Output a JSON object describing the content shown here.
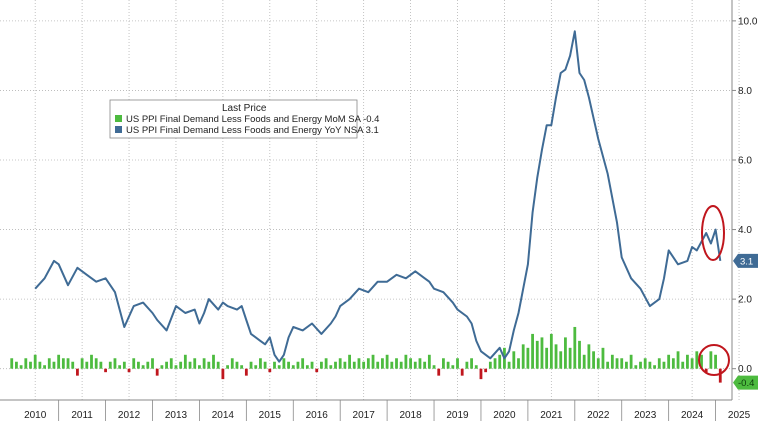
{
  "chart_data": {
    "type": "bar",
    "title": "",
    "legend": {
      "title": "Last Price",
      "placement": "top-left",
      "entries": [
        {
          "text": "US PPI Final Demand Less Foods and Energy MoM SA  -0.4",
          "color": "#4dbb3f"
        },
        {
          "text": "US PPI Final Demand Less Foods and Energy YoY NSA 3.1",
          "color": "#3f6b95"
        }
      ]
    },
    "x_ticks": [
      "2010",
      "2011",
      "2012",
      "2013",
      "2014",
      "2015",
      "2016",
      "2017",
      "2018",
      "2019",
      "2020",
      "2021",
      "2022",
      "2023",
      "2024",
      "2025"
    ],
    "y_ticks": [
      "0.0",
      "2.0",
      "4.0",
      "6.0",
      "8.0",
      "10.0"
    ],
    "ylim": [
      -0.9,
      10.6
    ],
    "y_axis_position": "right",
    "grid": true,
    "last_labels": {
      "yoy": "3.1",
      "mom": "-0.4"
    },
    "colors": {
      "yoy_line": "#3f6b95",
      "mom_positive": "#4dbb3f",
      "mom_negative": "#c0161d",
      "callout": "#c0161d"
    },
    "series": [
      {
        "name": "US PPI Final Demand Less Foods and Energy YoY NSA",
        "type": "line",
        "x": [
          2010.5,
          2010.7,
          2010.9,
          2011.0,
          2011.2,
          2011.4,
          2011.6,
          2011.8,
          2012.0,
          2012.2,
          2012.4,
          2012.6,
          2012.8,
          2013.0,
          2013.1,
          2013.3,
          2013.5,
          2013.7,
          2013.9,
          2014.0,
          2014.1,
          2014.2,
          2014.4,
          2014.5,
          2014.6,
          2014.8,
          2014.9,
          2015.0,
          2015.1,
          2015.3,
          2015.4,
          2015.5,
          2015.6,
          2015.7,
          2015.8,
          2015.9,
          2016.0,
          2016.2,
          2016.4,
          2016.6,
          2016.8,
          2016.9,
          2017.0,
          2017.2,
          2017.4,
          2017.6,
          2017.8,
          2018.0,
          2018.2,
          2018.4,
          2018.6,
          2018.8,
          2018.9,
          2019.0,
          2019.2,
          2019.4,
          2019.5,
          2019.7,
          2019.8,
          2019.9,
          2020.0,
          2020.2,
          2020.4,
          2020.5,
          2020.6,
          2020.7,
          2020.8,
          2020.9,
          2021.0,
          2021.1,
          2021.2,
          2021.3,
          2021.4,
          2021.5,
          2021.6,
          2021.7,
          2021.8,
          2021.9,
          2022.0,
          2022.1,
          2022.2,
          2022.3,
          2022.4,
          2022.5,
          2022.7,
          2022.9,
          2023.0,
          2023.2,
          2023.4,
          2023.6,
          2023.8,
          2023.9,
          2024.0,
          2024.2,
          2024.4,
          2024.5,
          2024.6,
          2024.8,
          2024.9,
          2025.0,
          2025.1
        ],
        "y": [
          2.3,
          2.6,
          3.1,
          3.0,
          2.4,
          2.9,
          2.7,
          2.5,
          2.6,
          2.2,
          1.2,
          1.8,
          1.9,
          1.6,
          1.4,
          1.1,
          1.8,
          1.6,
          1.7,
          1.3,
          1.6,
          2.0,
          1.7,
          1.9,
          1.8,
          1.7,
          1.8,
          1.4,
          1.0,
          0.8,
          0.7,
          0.9,
          0.4,
          0.2,
          0.4,
          0.9,
          1.2,
          1.1,
          1.3,
          1.0,
          1.3,
          1.5,
          1.8,
          2.0,
          2.3,
          2.2,
          2.5,
          2.5,
          2.7,
          2.6,
          2.8,
          2.6,
          2.5,
          2.3,
          2.2,
          1.9,
          1.7,
          1.5,
          1.3,
          0.8,
          0.5,
          0.3,
          0.6,
          0.3,
          0.5,
          1.1,
          1.6,
          2.3,
          3.0,
          4.5,
          5.5,
          6.3,
          7.0,
          7.0,
          7.8,
          8.5,
          8.6,
          9.0,
          9.7,
          8.5,
          8.3,
          7.8,
          7.2,
          6.6,
          5.6,
          4.2,
          3.2,
          2.6,
          2.3,
          1.8,
          2.0,
          2.6,
          3.4,
          3.0,
          3.1,
          3.5,
          3.4,
          3.9,
          3.6,
          4.0,
          3.1
        ]
      },
      {
        "name": "US PPI Final Demand Less Foods and Energy MoM SA",
        "type": "bar",
        "x": [
          2010.0,
          2010.1,
          2010.2,
          2010.3,
          2010.4,
          2010.5,
          2010.6,
          2010.7,
          2010.8,
          2010.9,
          2011.0,
          2011.1,
          2011.2,
          2011.3,
          2011.4,
          2011.5,
          2011.6,
          2011.7,
          2011.8,
          2011.9,
          2012.0,
          2012.1,
          2012.2,
          2012.3,
          2012.4,
          2012.5,
          2012.6,
          2012.7,
          2012.8,
          2012.9,
          2013.0,
          2013.1,
          2013.2,
          2013.3,
          2013.4,
          2013.5,
          2013.6,
          2013.7,
          2013.8,
          2013.9,
          2014.0,
          2014.1,
          2014.2,
          2014.3,
          2014.4,
          2014.5,
          2014.6,
          2014.7,
          2014.8,
          2014.9,
          2015.0,
          2015.1,
          2015.2,
          2015.3,
          2015.4,
          2015.5,
          2015.6,
          2015.7,
          2015.8,
          2015.9,
          2016.0,
          2016.1,
          2016.2,
          2016.3,
          2016.4,
          2016.5,
          2016.6,
          2016.7,
          2016.8,
          2016.9,
          2017.0,
          2017.1,
          2017.2,
          2017.3,
          2017.4,
          2017.5,
          2017.6,
          2017.7,
          2017.8,
          2017.9,
          2018.0,
          2018.1,
          2018.2,
          2018.3,
          2018.4,
          2018.5,
          2018.6,
          2018.7,
          2018.8,
          2018.9,
          2019.0,
          2019.1,
          2019.2,
          2019.3,
          2019.4,
          2019.5,
          2019.6,
          2019.7,
          2019.8,
          2019.9,
          2020.0,
          2020.1,
          2020.2,
          2020.3,
          2020.4,
          2020.5,
          2020.6,
          2020.7,
          2020.8,
          2020.9,
          2021.0,
          2021.1,
          2021.2,
          2021.3,
          2021.4,
          2021.5,
          2021.6,
          2021.7,
          2021.8,
          2021.9,
          2022.0,
          2022.1,
          2022.2,
          2022.3,
          2022.4,
          2022.5,
          2022.6,
          2022.7,
          2022.8,
          2022.9,
          2023.0,
          2023.1,
          2023.2,
          2023.3,
          2023.4,
          2023.5,
          2023.6,
          2023.7,
          2023.8,
          2023.9,
          2024.0,
          2024.1,
          2024.2,
          2024.3,
          2024.4,
          2024.5,
          2024.6,
          2024.7,
          2024.8,
          2024.9,
          2025.0,
          2025.1
        ],
        "y": [
          0.3,
          0.2,
          0.1,
          0.3,
          0.2,
          0.4,
          0.2,
          0.1,
          0.3,
          0.2,
          0.4,
          0.3,
          0.3,
          0.2,
          -0.2,
          0.3,
          0.2,
          0.4,
          0.3,
          0.2,
          -0.1,
          0.2,
          0.3,
          0.1,
          0.2,
          -0.1,
          0.3,
          0.2,
          0.1,
          0.2,
          0.3,
          -0.2,
          0.1,
          0.2,
          0.3,
          0.1,
          0.2,
          0.4,
          0.2,
          0.3,
          0.1,
          0.3,
          0.2,
          0.4,
          0.2,
          -0.3,
          0.1,
          0.3,
          0.2,
          0.1,
          -0.2,
          0.2,
          0.1,
          0.3,
          0.2,
          -0.1,
          0.2,
          0.1,
          0.3,
          0.2,
          0.1,
          0.2,
          0.3,
          0.1,
          0.2,
          -0.1,
          0.2,
          0.3,
          0.1,
          0.2,
          0.3,
          0.2,
          0.4,
          0.2,
          0.3,
          0.2,
          0.3,
          0.4,
          0.2,
          0.3,
          0.4,
          0.2,
          0.3,
          0.2,
          0.4,
          0.3,
          0.2,
          0.3,
          0.2,
          0.4,
          0.1,
          -0.2,
          0.3,
          0.2,
          0.1,
          0.3,
          -0.2,
          0.2,
          0.3,
          0.1,
          -0.3,
          -0.1,
          0.2,
          0.3,
          0.4,
          0.6,
          0.2,
          0.5,
          0.3,
          0.7,
          0.6,
          1.0,
          0.8,
          0.9,
          0.6,
          1.0,
          0.7,
          0.5,
          0.9,
          0.6,
          1.2,
          0.8,
          0.4,
          0.7,
          0.5,
          0.3,
          0.6,
          0.2,
          0.4,
          0.3,
          0.3,
          0.2,
          0.4,
          0.1,
          0.2,
          0.3,
          0.2,
          0.1,
          0.3,
          0.2,
          0.4,
          0.3,
          0.5,
          0.2,
          0.4,
          0.3,
          0.5,
          0.4,
          -0.1,
          0.5,
          0.4,
          -0.4
        ]
      }
    ]
  }
}
